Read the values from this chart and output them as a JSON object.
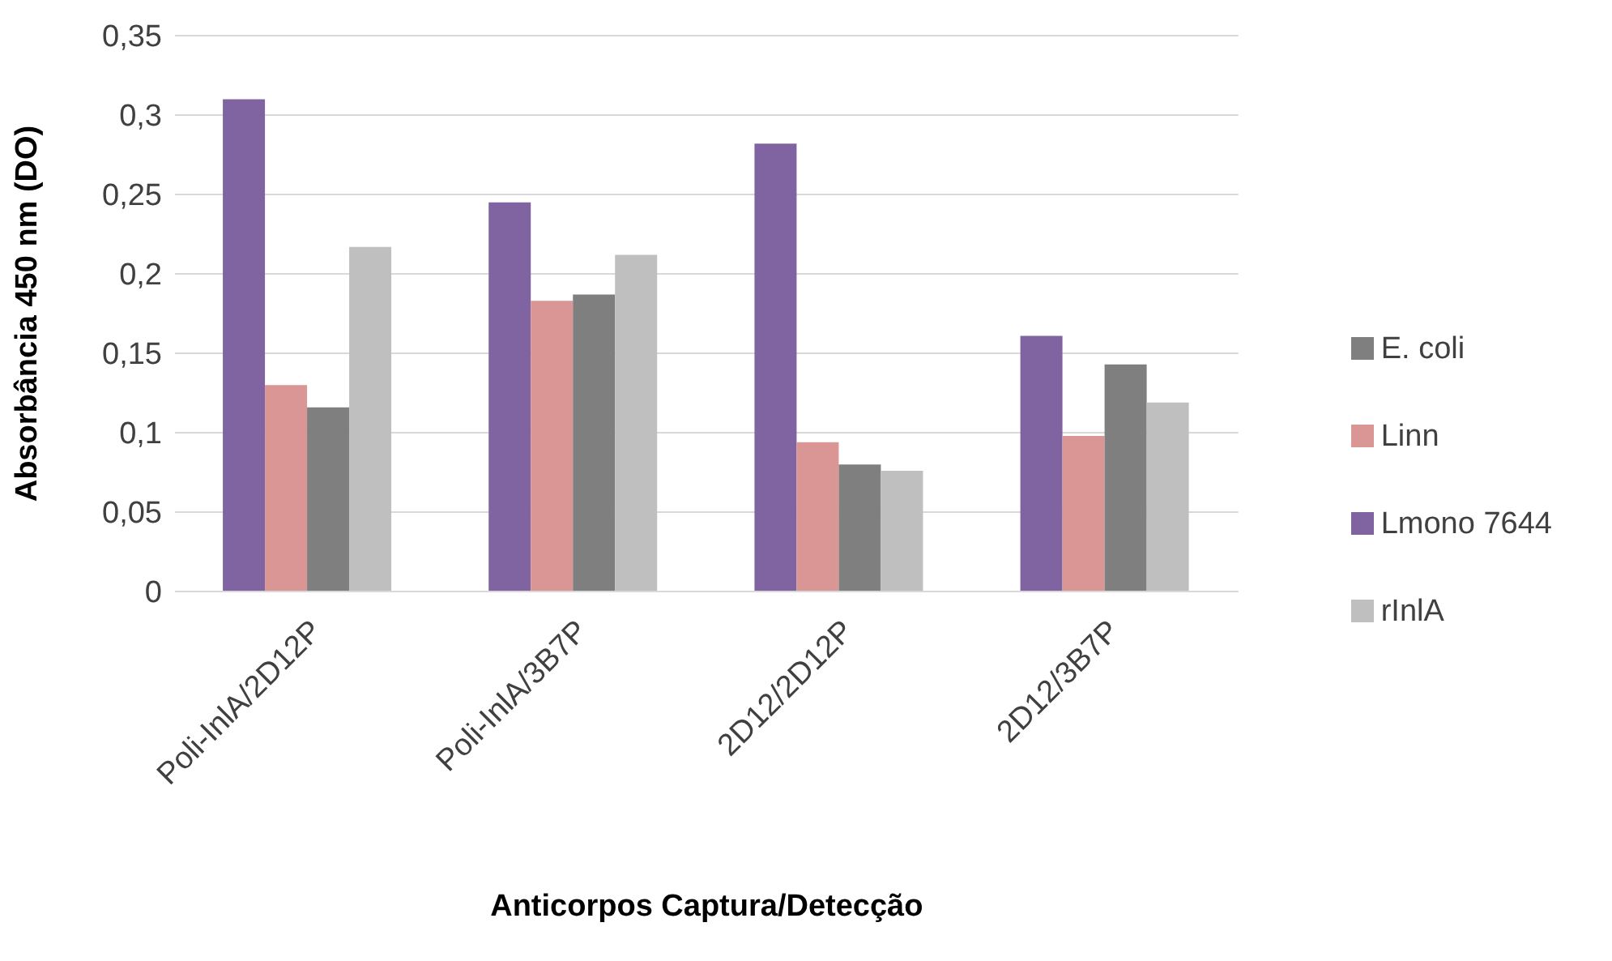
{
  "chart_data": {
    "type": "bar",
    "xlabel": "Anticorpos Captura/Detecção",
    "ylabel": "Absorbância 450 nm (DO)",
    "categories": [
      "Poli-InlA/2D12P",
      "Poli-InlA/3B7P",
      "2D12/2D12P",
      "2D12/3B7P"
    ],
    "series": [
      {
        "name": "Lmono 7644",
        "color": "#8064a2",
        "values": [
          0.31,
          0.245,
          0.282,
          0.161
        ]
      },
      {
        "name": "Linn",
        "color": "#d99694",
        "values": [
          0.13,
          0.183,
          0.094,
          0.098
        ]
      },
      {
        "name": "E. coli",
        "color": "#7f7f7f",
        "values": [
          0.116,
          0.187,
          0.08,
          0.143
        ]
      },
      {
        "name": "rInlA",
        "color": "#bfbfbf",
        "values": [
          0.217,
          0.212,
          0.076,
          0.119
        ]
      }
    ],
    "ylim": [
      0,
      0.35
    ],
    "yticks": [
      {
        "value": 0,
        "label": "0"
      },
      {
        "value": 0.05,
        "label": "0,05"
      },
      {
        "value": 0.1,
        "label": "0,1"
      },
      {
        "value": 0.15,
        "label": "0,15"
      },
      {
        "value": 0.2,
        "label": "0,2"
      },
      {
        "value": 0.25,
        "label": "0,25"
      },
      {
        "value": 0.3,
        "label": "0,3"
      },
      {
        "value": 0.35,
        "label": "0,35"
      }
    ],
    "grid": "y",
    "legend": "right"
  }
}
